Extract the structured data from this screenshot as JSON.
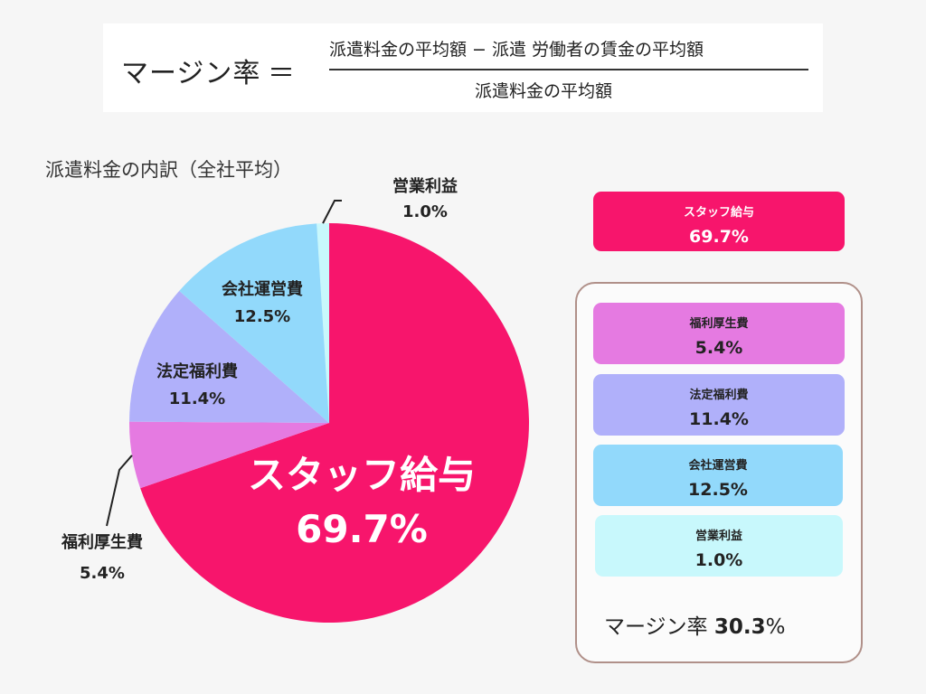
{
  "formula": {
    "lhs": "マージン率",
    "equals": "＝",
    "numerator": "派遣料金の平均額 − 派遣 労働者の賃金の平均額",
    "denominator": "派遣料金の平均額"
  },
  "chart_data": {
    "type": "pie",
    "title": "派遣料金の内訳（全社平均）",
    "slices": [
      {
        "label": "営業利益",
        "value": 1.0,
        "value_text": "1.0%",
        "color": "#c8f8fc"
      },
      {
        "label": "スタッフ給与",
        "value": 69.7,
        "value_text": "69.7%",
        "color": "#f7156c"
      },
      {
        "label": "福利厚生費",
        "value": 5.4,
        "value_text": "5.4%",
        "color": "#e57ae1"
      },
      {
        "label": "法定福利費",
        "value": 11.4,
        "value_text": "11.4%",
        "color": "#b0b0fa"
      },
      {
        "label": "会社運営費",
        "value": 12.5,
        "value_text": "12.5%",
        "color": "#92d9fb"
      }
    ]
  },
  "cards": [
    {
      "label": "スタッフ給与",
      "value": "69.7%",
      "color": "#f7156c"
    },
    {
      "label": "福利厚生費",
      "value": "5.4%",
      "color": "#e57ae1"
    },
    {
      "label": "法定福利費",
      "value": "11.4%",
      "color": "#b0b0fa"
    },
    {
      "label": "会社運営費",
      "value": "12.5%",
      "color": "#92d9fb"
    },
    {
      "label": "営業利益",
      "value": "1.0%",
      "color": "#c8f8fc"
    }
  ],
  "margin": {
    "label": "マージン率 ",
    "value": "30.3",
    "unit": "%"
  }
}
